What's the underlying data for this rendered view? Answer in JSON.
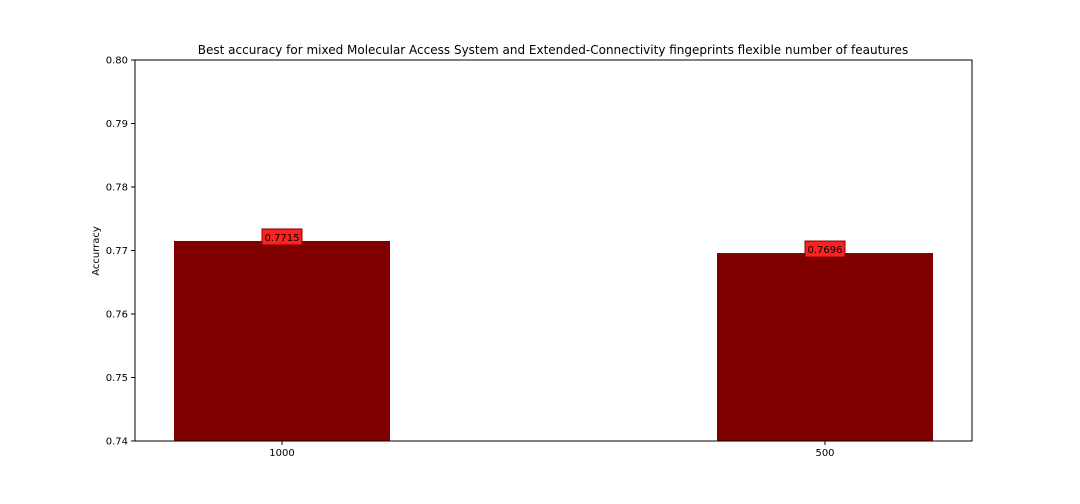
{
  "chart_data": {
    "type": "bar",
    "title": "Best accuracy for mixed Molecular Access System and Extended-Connectivity fingeprints flexible number of feautures",
    "xlabel": "",
    "ylabel": "Accurracy",
    "categories": [
      "1000",
      "500"
    ],
    "values": [
      0.7715,
      0.7696
    ],
    "data_labels": [
      "0.7715",
      "0.7696"
    ],
    "ylim": [
      0.74,
      0.8
    ],
    "yticks": [
      "0.74",
      "0.75",
      "0.76",
      "0.77",
      "0.78",
      "0.79",
      "0.80"
    ],
    "grid": false,
    "legend": "none",
    "colors": {
      "bar": "#800000",
      "label_box_fill": "#ff2020",
      "label_box_stroke": "#800000"
    }
  }
}
